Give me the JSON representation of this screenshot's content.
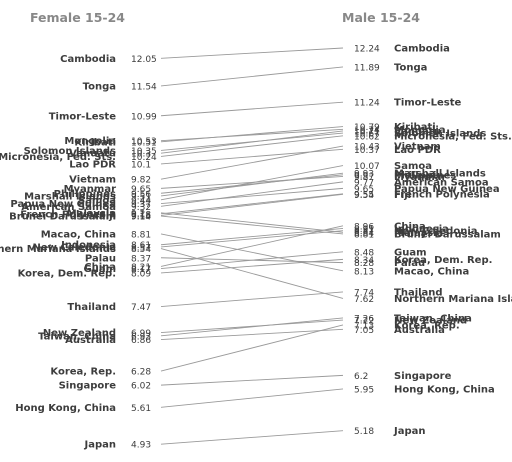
{
  "chart_data": {
    "type": "slope",
    "title": "",
    "left_header": "Female 15-24",
    "right_header": "Male 15-24",
    "series": [
      {
        "name": "Cambodia",
        "female": 12.05,
        "male": 12.24
      },
      {
        "name": "Tonga",
        "female": 11.54,
        "male": 11.89
      },
      {
        "name": "Timor-Leste",
        "female": 10.99,
        "male": 11.24
      },
      {
        "name": "Mongolia",
        "female": 10.53,
        "male": 10.74
      },
      {
        "name": "Kiribati",
        "female": 10.51,
        "male": 10.79
      },
      {
        "name": "Solomon Islands",
        "female": 10.35,
        "male": 10.67
      },
      {
        "name": "Vanuatu",
        "female": 10.3,
        "male": 10.71
      },
      {
        "name": "Micronesia, Fed. Sts.",
        "female": 10.24,
        "male": 10.62
      },
      {
        "name": "Lao PDR",
        "female": 10.1,
        "male": 10.37
      },
      {
        "name": "Vietnam",
        "female": 9.82,
        "male": 10.43
      },
      {
        "name": "Myanmar",
        "female": 9.65,
        "male": 9.87
      },
      {
        "name": "Philippines",
        "female": 9.56,
        "male": 9.9
      },
      {
        "name": "Marshall Islands",
        "female": 9.51,
        "male": 9.93
      },
      {
        "name": "Samoa",
        "female": 9.44,
        "male": 10.07
      },
      {
        "name": "Papua New Guinea",
        "female": 9.37,
        "male": 9.65
      },
      {
        "name": "American Samoa",
        "female": 9.32,
        "male": 9.77
      },
      {
        "name": "Malaysia",
        "female": 9.2,
        "male": 8.84
      },
      {
        "name": "French Polynesia",
        "female": 9.18,
        "male": 9.55
      },
      {
        "name": "Fiji",
        "female": 9.15,
        "male": 9.54
      },
      {
        "name": "Brunei Darussalam",
        "female": 9.14,
        "male": 8.81
      },
      {
        "name": "Macao, China",
        "female": 8.81,
        "male": 8.13
      },
      {
        "name": "Indonesia",
        "female": 8.61,
        "male": 8.91
      },
      {
        "name": "New Caledonia",
        "female": 8.57,
        "male": 8.87
      },
      {
        "name": "Northern Mariana Islands",
        "female": 8.54,
        "male": 7.62
      },
      {
        "name": "Palau",
        "female": 8.37,
        "male": 8.28
      },
      {
        "name": "China",
        "female": 8.21,
        "male": 8.96
      },
      {
        "name": "Guam",
        "female": 8.17,
        "male": 8.48
      },
      {
        "name": "Korea, Dem. Rep.",
        "female": 8.09,
        "male": 8.34
      },
      {
        "name": "Thailand",
        "female": 7.47,
        "male": 7.74
      },
      {
        "name": "New Zealand",
        "female": 6.99,
        "male": 7.22
      },
      {
        "name": "Taiwan, China",
        "female": 6.93,
        "male": 7.26
      },
      {
        "name": "Australia",
        "female": 6.86,
        "male": 7.05
      },
      {
        "name": "Korea, Rep.",
        "female": 6.28,
        "male": 7.13
      },
      {
        "name": "Singapore",
        "female": 6.02,
        "male": 6.2
      },
      {
        "name": "Hong Kong, China",
        "female": 5.61,
        "male": 5.95
      },
      {
        "name": "Japan",
        "female": 4.93,
        "male": 5.18
      }
    ]
  }
}
